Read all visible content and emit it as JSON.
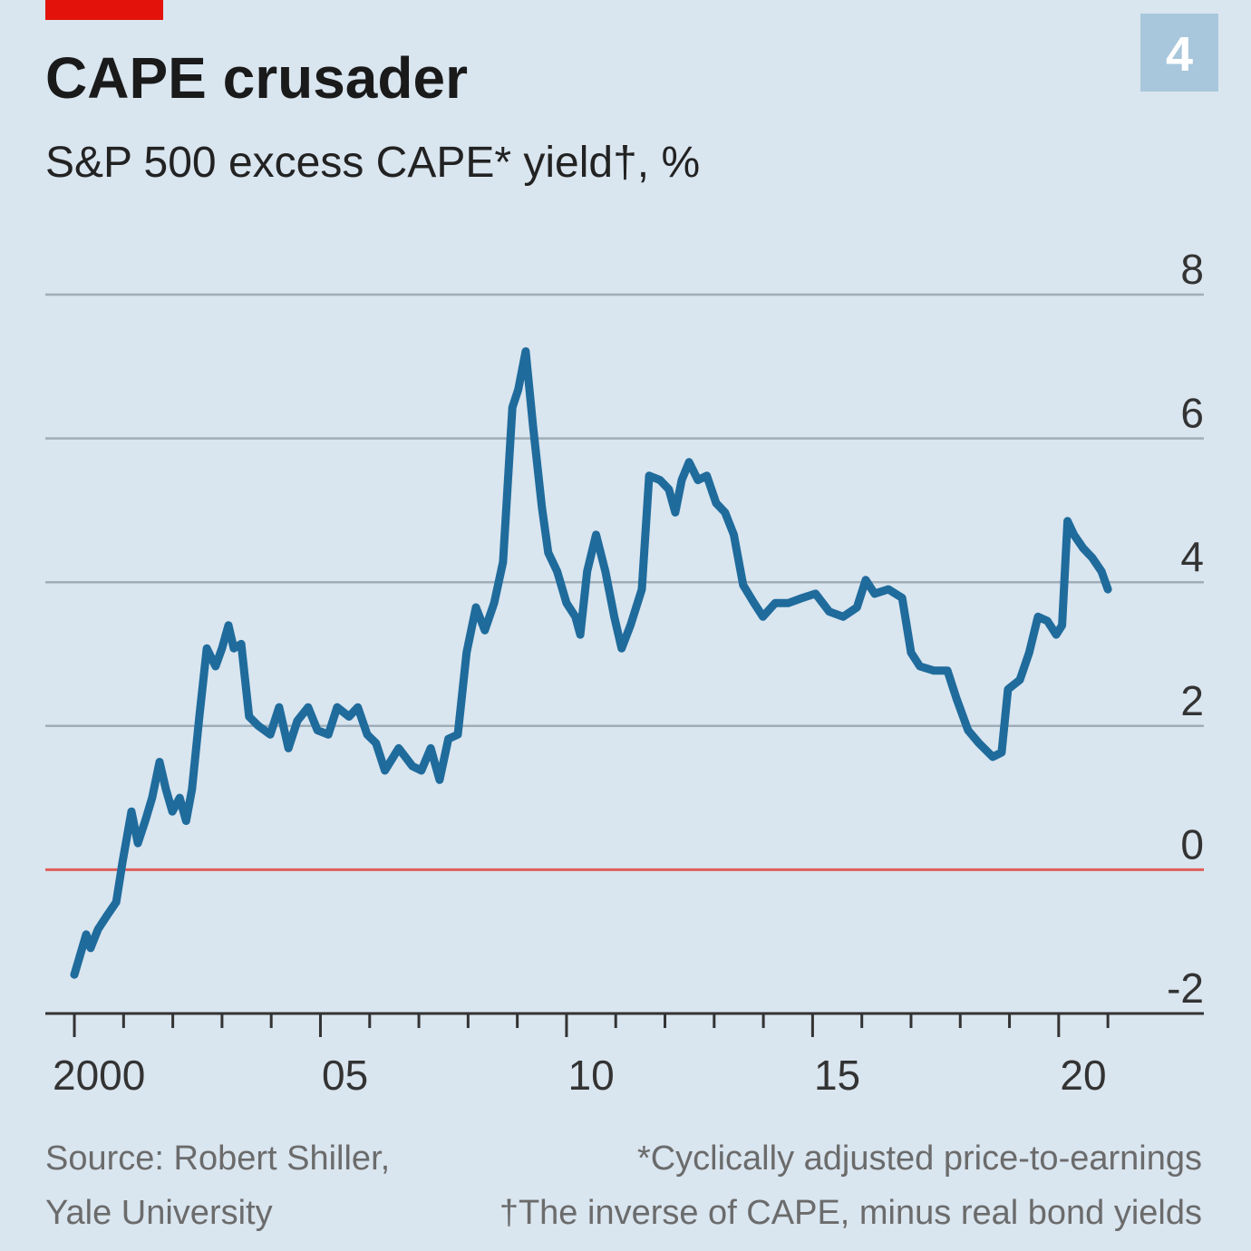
{
  "chart_data": {
    "type": "line",
    "title": "CAPE crusader",
    "subtitle": "S&P 500 excess CAPE* yield†, %",
    "badge": "4",
    "source": [
      "Source: Robert Shiller,",
      "Yale University"
    ],
    "notes": [
      "*Cyclically adjusted price-to-earnings",
      "†The inverse of CAPE, minus real bond yields"
    ],
    "color": "#1f6b9c",
    "zero_line_color": "#e0605a",
    "grid": true,
    "ylim": [
      -2,
      8
    ],
    "yticks": [
      -2,
      0,
      2,
      4,
      6,
      8
    ],
    "xlim": [
      1999.41,
      2022.95
    ],
    "xticks": [
      2000,
      2001,
      2002,
      2003,
      2004,
      2005,
      2006,
      2007,
      2008,
      2009,
      2010,
      2011,
      2012,
      2013,
      2014,
      2015,
      2016,
      2017,
      2018,
      2019,
      2020,
      2021
    ],
    "xtick_labels": [
      {
        "value": 2000,
        "label": "2000"
      },
      {
        "value": 2005,
        "label": "05"
      },
      {
        "value": 2010,
        "label": "10"
      },
      {
        "value": 2015,
        "label": "15"
      },
      {
        "value": 2020,
        "label": "20"
      }
    ],
    "x": [
      2000.0,
      2000.24,
      2000.33,
      2000.48,
      2000.66,
      2000.85,
      2000.98,
      2001.16,
      2001.29,
      2001.44,
      2001.58,
      2001.73,
      2001.86,
      2001.99,
      2002.14,
      2002.27,
      2002.39,
      2002.54,
      2002.69,
      2002.87,
      2003.0,
      2003.13,
      2003.24,
      2003.39,
      2003.55,
      2003.74,
      2003.98,
      2004.16,
      2004.35,
      2004.53,
      2004.75,
      2004.94,
      2005.16,
      2005.34,
      2005.58,
      2005.76,
      2005.95,
      2006.13,
      2006.31,
      2006.59,
      2006.87,
      2007.05,
      2007.24,
      2007.42,
      2007.6,
      2007.79,
      2007.97,
      2008.16,
      2008.34,
      2008.53,
      2008.71,
      2008.9,
      2009.02,
      2009.17,
      2009.32,
      2009.5,
      2009.63,
      2009.81,
      2010.0,
      2010.18,
      2010.28,
      2010.42,
      2010.6,
      2010.79,
      2010.97,
      2011.12,
      2011.3,
      2011.53,
      2011.68,
      2011.9,
      2012.08,
      2012.21,
      2012.34,
      2012.49,
      2012.67,
      2012.85,
      2013.04,
      2013.22,
      2013.4,
      2013.59,
      2013.81,
      2013.99,
      2014.24,
      2014.51,
      2014.79,
      2015.06,
      2015.34,
      2015.62,
      2015.9,
      2016.08,
      2016.26,
      2016.54,
      2016.82,
      2017.0,
      2017.18,
      2017.46,
      2017.74,
      2017.92,
      2018.16,
      2018.38,
      2018.66,
      2018.84,
      2018.97,
      2019.21,
      2019.4,
      2019.58,
      2019.77,
      2019.95,
      2020.07,
      2020.18,
      2020.31,
      2020.5,
      2020.68,
      2020.87,
      2021.0
    ],
    "values": [
      -1.46,
      -0.9,
      -1.09,
      -0.83,
      -0.64,
      -0.45,
      0.11,
      0.81,
      0.37,
      0.68,
      1.0,
      1.5,
      1.12,
      0.81,
      1.0,
      0.68,
      1.12,
      2.13,
      3.08,
      2.83,
      3.08,
      3.4,
      3.08,
      3.14,
      2.13,
      2.0,
      1.88,
      2.26,
      1.69,
      2.07,
      2.26,
      1.94,
      1.88,
      2.26,
      2.13,
      2.26,
      1.88,
      1.76,
      1.38,
      1.69,
      1.44,
      1.38,
      1.69,
      1.25,
      1.82,
      1.88,
      3.02,
      3.65,
      3.33,
      3.71,
      4.28,
      6.43,
      6.68,
      7.21,
      6.17,
      5.04,
      4.41,
      4.15,
      3.71,
      3.52,
      3.27,
      4.15,
      4.66,
      4.15,
      3.52,
      3.08,
      3.4,
      3.9,
      5.48,
      5.42,
      5.29,
      4.97,
      5.42,
      5.67,
      5.42,
      5.48,
      5.1,
      4.97,
      4.66,
      3.96,
      3.71,
      3.52,
      3.71,
      3.71,
      3.78,
      3.84,
      3.59,
      3.52,
      3.65,
      4.03,
      3.84,
      3.9,
      3.78,
      3.02,
      2.83,
      2.77,
      2.77,
      2.39,
      1.94,
      1.76,
      1.57,
      1.63,
      2.51,
      2.64,
      3.02,
      3.52,
      3.46,
      3.27,
      3.4,
      4.85,
      4.66,
      4.47,
      4.34,
      4.15,
      3.9
    ]
  }
}
